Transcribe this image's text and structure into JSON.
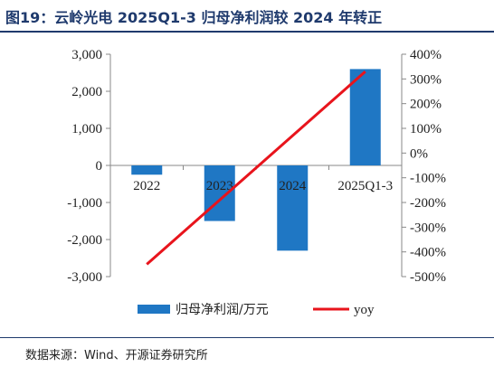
{
  "title": "图19：云岭光电 2025Q1-3 归母净利润较 2024 年转正",
  "source": "数据来源：Wind、开源证券研究所",
  "colors": {
    "bar": "#1f77c4",
    "line": "#e8141c",
    "title": "#1f3a6d"
  },
  "chart_data": {
    "type": "bar",
    "categories": [
      "2022",
      "2023",
      "2024",
      "2025Q1-3"
    ],
    "series": [
      {
        "name": "归母净利润/万元",
        "type": "bar",
        "axis": "left",
        "values": [
          -250,
          -1500,
          -2300,
          2600
        ]
      },
      {
        "name": "yoy",
        "type": "line",
        "axis": "right",
        "values": [
          -450,
          null,
          null,
          330
        ]
      }
    ],
    "y_left": {
      "min": -3000,
      "max": 3000,
      "ticks": [
        "-3,000",
        "-2,000",
        "-1,000",
        "0",
        "1,000",
        "2,000",
        "3,000"
      ]
    },
    "y_right": {
      "min": -500,
      "max": 400,
      "ticks": [
        "-500%",
        "-400%",
        "-300%",
        "-200%",
        "-100%",
        "0%",
        "100%",
        "200%",
        "300%",
        "400%"
      ]
    },
    "legend": [
      "归母净利润/万元",
      "yoy"
    ],
    "legend_position": "bottom",
    "grid": false
  }
}
